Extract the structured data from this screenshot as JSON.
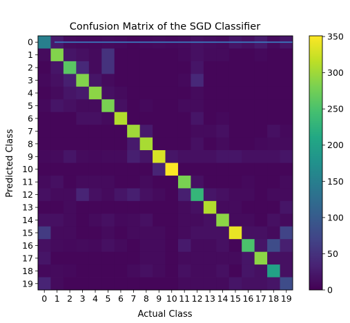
{
  "chart_data": {
    "type": "heatmap",
    "title": "Confusion Matrix of the SGD Classifier",
    "xlabel": "Actual Class",
    "ylabel": "Predicted Class",
    "x_categories": [
      "0",
      "1",
      "2",
      "3",
      "4",
      "5",
      "6",
      "7",
      "8",
      "9",
      "10",
      "11",
      "12",
      "13",
      "14",
      "15",
      "16",
      "17",
      "18",
      "19"
    ],
    "y_categories": [
      "0",
      "1",
      "2",
      "3",
      "4",
      "5",
      "6",
      "7",
      "8",
      "9",
      "10",
      "11",
      "12",
      "13",
      "14",
      "15",
      "16",
      "17",
      "18",
      "19"
    ],
    "colormap": "viridis",
    "colorbar": {
      "min": 0,
      "max": 351,
      "ticks": [
        0,
        50,
        100,
        150,
        200,
        250,
        300,
        350
      ]
    },
    "values": [
      [
        150,
        25,
        10,
        8,
        8,
        10,
        8,
        5,
        8,
        10,
        8,
        10,
        15,
        12,
        10,
        20,
        15,
        25,
        10,
        20
      ],
      [
        10,
        285,
        20,
        15,
        10,
        50,
        5,
        5,
        5,
        5,
        5,
        8,
        15,
        10,
        10,
        5,
        5,
        8,
        5,
        5
      ],
      [
        5,
        20,
        260,
        40,
        10,
        50,
        5,
        5,
        5,
        5,
        5,
        5,
        20,
        5,
        5,
        5,
        5,
        5,
        5,
        5
      ],
      [
        8,
        15,
        30,
        285,
        20,
        10,
        5,
        5,
        5,
        5,
        5,
        8,
        40,
        5,
        5,
        5,
        5,
        5,
        5,
        5
      ],
      [
        5,
        10,
        20,
        25,
        290,
        15,
        10,
        5,
        5,
        5,
        5,
        5,
        10,
        5,
        5,
        5,
        5,
        5,
        5,
        5
      ],
      [
        8,
        20,
        15,
        10,
        10,
        280,
        15,
        5,
        8,
        5,
        5,
        10,
        10,
        5,
        5,
        5,
        5,
        5,
        5,
        5
      ],
      [
        5,
        5,
        5,
        15,
        15,
        10,
        310,
        5,
        5,
        5,
        5,
        5,
        20,
        5,
        8,
        5,
        5,
        5,
        5,
        5
      ],
      [
        5,
        5,
        5,
        5,
        5,
        5,
        5,
        300,
        25,
        5,
        5,
        5,
        10,
        10,
        15,
        5,
        5,
        5,
        15,
        8
      ],
      [
        5,
        5,
        5,
        5,
        5,
        5,
        5,
        25,
        305,
        5,
        5,
        5,
        15,
        5,
        10,
        5,
        5,
        8,
        10,
        10
      ],
      [
        8,
        10,
        20,
        10,
        8,
        10,
        10,
        30,
        20,
        330,
        20,
        15,
        15,
        15,
        20,
        20,
        15,
        15,
        15,
        20
      ],
      [
        5,
        5,
        5,
        5,
        5,
        5,
        5,
        5,
        5,
        35,
        351,
        5,
        5,
        5,
        5,
        5,
        5,
        5,
        5,
        5
      ],
      [
        10,
        15,
        5,
        10,
        10,
        10,
        5,
        5,
        10,
        5,
        5,
        280,
        15,
        5,
        5,
        5,
        8,
        5,
        5,
        10
      ],
      [
        15,
        10,
        10,
        35,
        15,
        10,
        20,
        30,
        15,
        10,
        5,
        30,
        230,
        20,
        15,
        10,
        10,
        5,
        10,
        10
      ],
      [
        5,
        5,
        10,
        5,
        5,
        5,
        5,
        5,
        5,
        5,
        5,
        10,
        15,
        310,
        10,
        10,
        5,
        5,
        5,
        20
      ],
      [
        15,
        15,
        10,
        5,
        10,
        15,
        8,
        10,
        15,
        5,
        5,
        10,
        10,
        15,
        290,
        10,
        10,
        5,
        15,
        10
      ],
      [
        60,
        10,
        10,
        5,
        5,
        10,
        5,
        10,
        10,
        10,
        5,
        10,
        15,
        15,
        15,
        340,
        15,
        15,
        10,
        70
      ],
      [
        15,
        10,
        8,
        10,
        8,
        15,
        10,
        5,
        10,
        10,
        5,
        25,
        10,
        10,
        15,
        5,
        250,
        20,
        80,
        30
      ],
      [
        20,
        5,
        5,
        5,
        5,
        5,
        5,
        5,
        10,
        10,
        5,
        10,
        10,
        10,
        10,
        10,
        20,
        290,
        15,
        15
      ],
      [
        8,
        10,
        8,
        5,
        5,
        5,
        5,
        10,
        15,
        10,
        5,
        15,
        10,
        10,
        15,
        5,
        20,
        15,
        200,
        15
      ],
      [
        35,
        10,
        5,
        5,
        5,
        5,
        5,
        5,
        5,
        5,
        5,
        10,
        10,
        10,
        10,
        20,
        15,
        15,
        20,
        80
      ]
    ]
  }
}
